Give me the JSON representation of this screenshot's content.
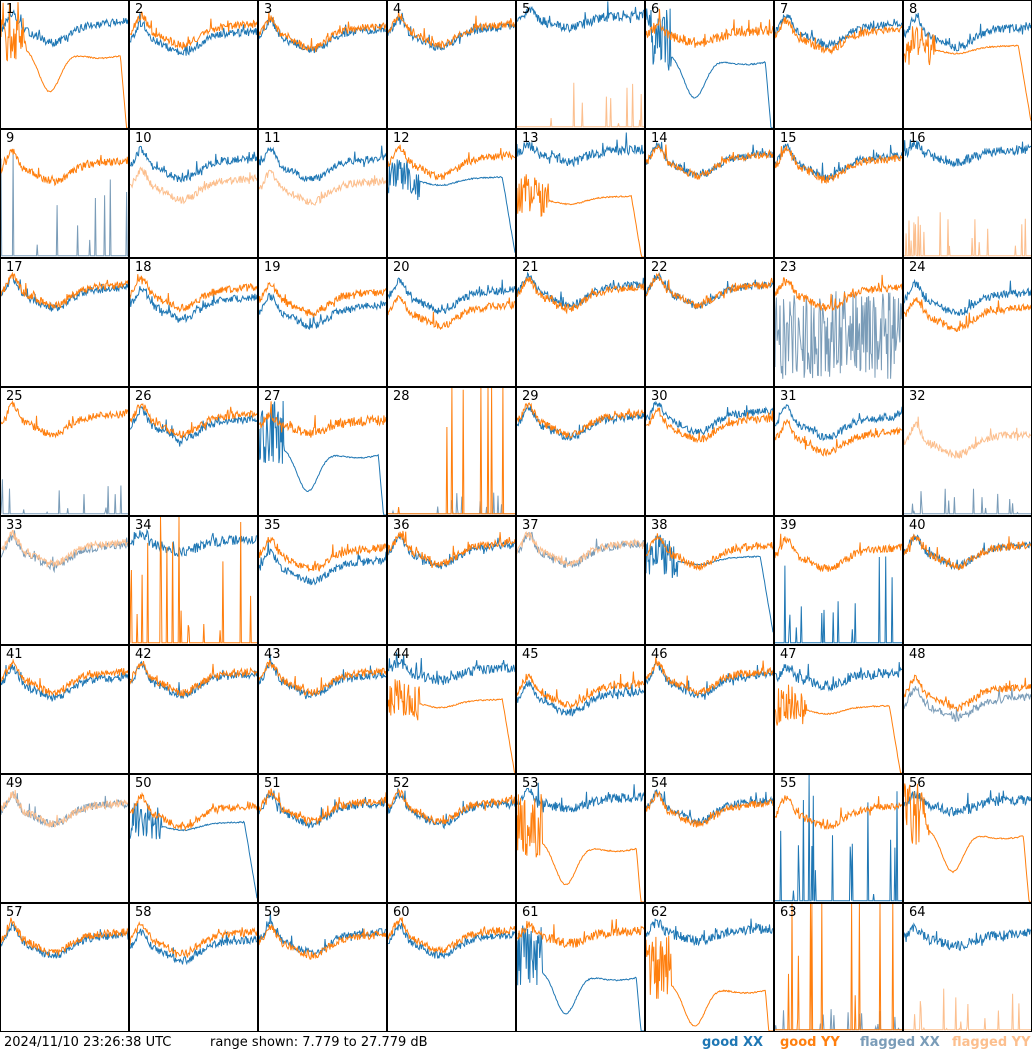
{
  "chart_data": {
    "type": "line",
    "layout": "8x8 panel grid of antenna spectra",
    "xlabel": "",
    "ylabel": "",
    "ylim": [
      7.779,
      27.779
    ],
    "y_unit": "dB",
    "panel_labels": [
      "1",
      "2",
      "3",
      "4",
      "5",
      "6",
      "7",
      "8",
      "9",
      "10",
      "11",
      "12",
      "13",
      "14",
      "15",
      "16",
      "17",
      "18",
      "19",
      "20",
      "21",
      "22",
      "23",
      "24",
      "25",
      "26",
      "27",
      "28",
      "29",
      "30",
      "31",
      "32",
      "33",
      "34",
      "35",
      "36",
      "37",
      "38",
      "39",
      "40",
      "41",
      "42",
      "43",
      "44",
      "45",
      "46",
      "47",
      "48",
      "49",
      "50",
      "51",
      "52",
      "53",
      "54",
      "55",
      "56",
      "57",
      "58",
      "59",
      "60",
      "61",
      "62",
      "63",
      "64"
    ],
    "series_styles": {
      "good_xx": {
        "name": "good XX",
        "color": "#1f77b4"
      },
      "good_yy": {
        "name": "good YY",
        "color": "#ff7f0e"
      },
      "flagged_xx": {
        "name": "flagged XX",
        "color": "#7a9cb8"
      },
      "flagged_yy": {
        "name": "flagged YY",
        "color": "#fcbf8e"
      }
    },
    "panels": [
      {
        "xx": "good",
        "yy": "good",
        "xxType": "normal",
        "yyType": "dip",
        "xxLevel": 0.8,
        "yyLevel": 0.6
      },
      {
        "xx": "good",
        "yy": "good",
        "xxType": "normal",
        "yyType": "normal",
        "xxLevel": 0.72,
        "yyLevel": 0.78
      },
      {
        "xx": "good",
        "yy": "good",
        "xxType": "normal",
        "yyType": "normal",
        "xxLevel": 0.74,
        "yyLevel": 0.76
      },
      {
        "xx": "good",
        "yy": "good",
        "xxType": "normal",
        "yyType": "normal",
        "xxLevel": 0.76,
        "yyLevel": 0.78
      },
      {
        "xx": "good",
        "yy": "flagged",
        "xxType": "highflat",
        "yyType": "spikes",
        "xxLevel": 0.84,
        "yyLevel": 0.1
      },
      {
        "xx": "good",
        "yy": "good",
        "xxType": "dip",
        "yyType": "highflat",
        "xxLevel": 0.55,
        "yyLevel": 0.72
      },
      {
        "xx": "good",
        "yy": "good",
        "xxType": "normal",
        "yyType": "normal",
        "xxLevel": 0.78,
        "yyLevel": 0.74
      },
      {
        "xx": "good",
        "yy": "good",
        "xxType": "normal",
        "yyType": "dropend",
        "xxLevel": 0.76,
        "yyLevel": 0.62
      },
      {
        "xx": "flagged",
        "yy": "good",
        "xxType": "spikes",
        "yyType": "normal",
        "xxLevel": 0.25,
        "yyLevel": 0.72
      },
      {
        "xx": "good",
        "yy": "flagged",
        "xxType": "normal",
        "yyType": "normal",
        "xxLevel": 0.74,
        "yyLevel": 0.58
      },
      {
        "xx": "good",
        "yy": "flagged",
        "xxType": "normal",
        "yyType": "normal",
        "xxLevel": 0.74,
        "yyLevel": 0.56
      },
      {
        "xx": "good",
        "yy": "good",
        "xxType": "dropend",
        "yyType": "normal",
        "xxLevel": 0.6,
        "yyLevel": 0.76
      },
      {
        "xx": "good",
        "yy": "good",
        "xxType": "highflat",
        "yyType": "dropend",
        "xxLevel": 0.8,
        "yyLevel": 0.45
      },
      {
        "xx": "good",
        "yy": "good",
        "xxType": "normal",
        "yyType": "normal",
        "xxLevel": 0.77,
        "yyLevel": 0.77
      },
      {
        "xx": "good",
        "yy": "good",
        "xxType": "normal",
        "yyType": "normal",
        "xxLevel": 0.76,
        "yyLevel": 0.74
      },
      {
        "xx": "good",
        "yy": "flagged",
        "xxType": "highflat",
        "yyType": "spikes",
        "xxLevel": 0.8,
        "yyLevel": 0.1
      },
      {
        "xx": "good",
        "yy": "good",
        "xxType": "normal",
        "yyType": "normal",
        "xxLevel": 0.74,
        "yyLevel": 0.76
      },
      {
        "xx": "good",
        "yy": "good",
        "xxType": "normal",
        "yyType": "normal",
        "xxLevel": 0.66,
        "yyLevel": 0.74
      },
      {
        "xx": "good",
        "yy": "good",
        "xxType": "normal",
        "yyType": "normal",
        "xxLevel": 0.6,
        "yyLevel": 0.7
      },
      {
        "xx": "good",
        "yy": "good",
        "xxType": "normal",
        "yyType": "normal",
        "xxLevel": 0.72,
        "yyLevel": 0.6
      },
      {
        "xx": "good",
        "yy": "good",
        "xxType": "normal",
        "yyType": "normal",
        "xxLevel": 0.76,
        "yyLevel": 0.74
      },
      {
        "xx": "good",
        "yy": "good",
        "xxType": "normal",
        "yyType": "normal",
        "xxLevel": 0.76,
        "yyLevel": 0.76
      },
      {
        "xx": "flagged",
        "yy": "good",
        "xxType": "noisy",
        "yyType": "normal",
        "xxLevel": 0.4,
        "yyLevel": 0.74
      },
      {
        "xx": "good",
        "yy": "good",
        "xxType": "normal",
        "yyType": "normal",
        "xxLevel": 0.7,
        "yyLevel": 0.58
      },
      {
        "xx": "flagged",
        "yy": "good",
        "xxType": "spikes",
        "yyType": "normal",
        "xxLevel": 0.08,
        "yyLevel": 0.76
      },
      {
        "xx": "good",
        "yy": "good",
        "xxType": "normal",
        "yyType": "normal",
        "xxLevel": 0.72,
        "yyLevel": 0.76
      },
      {
        "xx": "good",
        "yy": "good",
        "xxType": "dip",
        "yyType": "highflat",
        "xxLevel": 0.5,
        "yyLevel": 0.7
      },
      {
        "xx": "flagged",
        "yy": "good",
        "xxType": "spikes",
        "yyType": "spikes",
        "xxLevel": 0.05,
        "yyLevel": 0.5
      },
      {
        "xx": "good",
        "yy": "good",
        "xxType": "normal",
        "yyType": "normal",
        "xxLevel": 0.74,
        "yyLevel": 0.76
      },
      {
        "xx": "good",
        "yy": "good",
        "xxType": "normal",
        "yyType": "normal",
        "xxLevel": 0.78,
        "yyLevel": 0.72
      },
      {
        "xx": "good",
        "yy": "good",
        "xxType": "normal",
        "yyType": "normal",
        "xxLevel": 0.74,
        "yyLevel": 0.62
      },
      {
        "xx": "flagged",
        "yy": "flagged",
        "xxType": "spikes",
        "yyType": "normal",
        "xxLevel": 0.06,
        "yyLevel": 0.6
      },
      {
        "xx": "flagged",
        "yy": "flagged",
        "xxType": "normal",
        "yyType": "normal",
        "xxLevel": 0.74,
        "yyLevel": 0.76
      },
      {
        "xx": "good",
        "yy": "good",
        "xxType": "highflat",
        "yyType": "spikes",
        "xxLevel": 0.78,
        "yyLevel": 0.35
      },
      {
        "xx": "good",
        "yy": "good",
        "xxType": "normal",
        "yyType": "normal",
        "xxLevel": 0.62,
        "yyLevel": 0.72
      },
      {
        "xx": "good",
        "yy": "good",
        "xxType": "normal",
        "yyType": "normal",
        "xxLevel": 0.74,
        "yyLevel": 0.76
      },
      {
        "xx": "flagged",
        "yy": "flagged",
        "xxType": "normal",
        "yyType": "normal",
        "xxLevel": 0.75,
        "yyLevel": 0.76
      },
      {
        "xx": "good",
        "yy": "good",
        "xxType": "dropend",
        "yyType": "normal",
        "xxLevel": 0.66,
        "yyLevel": 0.74
      },
      {
        "xx": "good",
        "yy": "good",
        "xxType": "spikes",
        "yyType": "normal",
        "xxLevel": 0.2,
        "yyLevel": 0.72
      },
      {
        "xx": "good",
        "yy": "good",
        "xxType": "normal",
        "yyType": "normal",
        "xxLevel": 0.74,
        "yyLevel": 0.74
      },
      {
        "xx": "good",
        "yy": "good",
        "xxType": "normal",
        "yyType": "normal",
        "xxLevel": 0.72,
        "yyLevel": 0.76
      },
      {
        "xx": "good",
        "yy": "good",
        "xxType": "normal",
        "yyType": "normal",
        "xxLevel": 0.74,
        "yyLevel": 0.76
      },
      {
        "xx": "good",
        "yy": "good",
        "xxType": "normal",
        "yyType": "normal",
        "xxLevel": 0.74,
        "yyLevel": 0.76
      },
      {
        "xx": "good",
        "yy": "good",
        "xxType": "highflat",
        "yyType": "dropend",
        "xxLevel": 0.78,
        "yyLevel": 0.55
      },
      {
        "xx": "good",
        "yy": "good",
        "xxType": "normal",
        "yyType": "normal",
        "xxLevel": 0.6,
        "yyLevel": 0.66
      },
      {
        "xx": "good",
        "yy": "good",
        "xxType": "normal",
        "yyType": "normal",
        "xxLevel": 0.74,
        "yyLevel": 0.76
      },
      {
        "xx": "good",
        "yy": "good",
        "xxType": "highflat",
        "yyType": "dropend",
        "xxLevel": 0.74,
        "yyLevel": 0.5
      },
      {
        "xx": "flagged",
        "yy": "good",
        "xxType": "normal",
        "yyType": "normal",
        "xxLevel": 0.56,
        "yyLevel": 0.64
      },
      {
        "xx": "flagged",
        "yy": "flagged",
        "xxType": "normal",
        "yyType": "normal",
        "xxLevel": 0.74,
        "yyLevel": 0.74
      },
      {
        "xx": "good",
        "yy": "good",
        "xxType": "dropend",
        "yyType": "normal",
        "xxLevel": 0.6,
        "yyLevel": 0.72
      },
      {
        "xx": "good",
        "yy": "good",
        "xxType": "normal",
        "yyType": "normal",
        "xxLevel": 0.74,
        "yyLevel": 0.76
      },
      {
        "xx": "good",
        "yy": "good",
        "xxType": "normal",
        "yyType": "normal",
        "xxLevel": 0.74,
        "yyLevel": 0.76
      },
      {
        "xx": "good",
        "yy": "good",
        "xxType": "highflat",
        "yyType": "dip",
        "xxLevel": 0.78,
        "yyLevel": 0.45
      },
      {
        "xx": "good",
        "yy": "good",
        "xxType": "normal",
        "yyType": "normal",
        "xxLevel": 0.76,
        "yyLevel": 0.74
      },
      {
        "xx": "good",
        "yy": "good",
        "xxType": "spikes",
        "yyType": "normal",
        "xxLevel": 0.3,
        "yyLevel": 0.72
      },
      {
        "xx": "good",
        "yy": "good",
        "xxType": "highflat",
        "yyType": "dip",
        "xxLevel": 0.76,
        "yyLevel": 0.55
      },
      {
        "xx": "good",
        "yy": "good",
        "xxType": "normal",
        "yyType": "normal",
        "xxLevel": 0.72,
        "yyLevel": 0.74
      },
      {
        "xx": "good",
        "yy": "good",
        "xxType": "normal",
        "yyType": "normal",
        "xxLevel": 0.68,
        "yyLevel": 0.74
      },
      {
        "xx": "good",
        "yy": "good",
        "xxType": "normal",
        "yyType": "normal",
        "xxLevel": 0.74,
        "yyLevel": 0.72
      },
      {
        "xx": "good",
        "yy": "good",
        "xxType": "normal",
        "yyType": "normal",
        "xxLevel": 0.72,
        "yyLevel": 0.76
      },
      {
        "xx": "good",
        "yy": "good",
        "xxType": "dip",
        "yyType": "highflat",
        "xxLevel": 0.45,
        "yyLevel": 0.74
      },
      {
        "xx": "good",
        "yy": "good",
        "xxType": "highflat",
        "yyType": "dip",
        "xxLevel": 0.76,
        "yyLevel": 0.35
      },
      {
        "xx": "flagged",
        "yy": "good",
        "xxType": "spikes",
        "yyType": "spikes",
        "xxLevel": 0.05,
        "yyLevel": 0.55
      },
      {
        "xx": "good",
        "yy": "flagged",
        "xxType": "highflat",
        "yyType": "spikes",
        "xxLevel": 0.72,
        "yyLevel": 0.1
      }
    ]
  },
  "footer": {
    "timestamp": "2024/11/10 23:26:38 UTC",
    "range": "range shown: 7.779 to 27.779 dB",
    "legend_good_xx": "good XX",
    "legend_good_yy": "good YY",
    "legend_flagged_xx": "flagged XX",
    "legend_flagged_yy": "flagged YY"
  }
}
